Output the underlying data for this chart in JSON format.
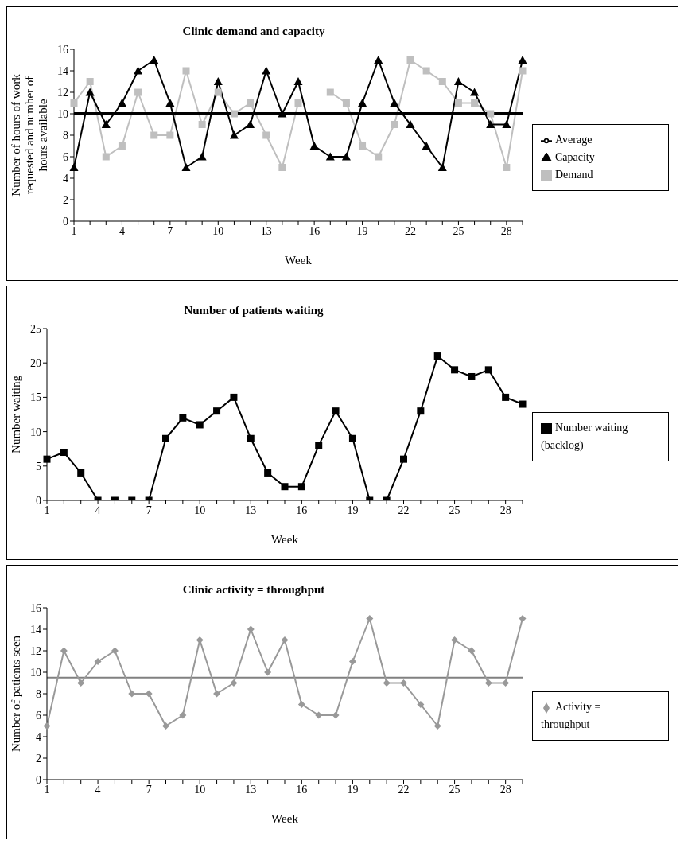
{
  "chart_data": [
    {
      "type": "line",
      "title": "Clinic demand and capacity",
      "xlabel": "Week",
      "ylabel": "Number of hours of work requested and number of hours available",
      "categories": [
        "1",
        null,
        null,
        "4",
        null,
        null,
        "7",
        null,
        null,
        "10",
        null,
        null,
        "13",
        null,
        null,
        "16",
        null,
        null,
        "19",
        null,
        null,
        "22",
        null,
        null,
        "25",
        null,
        null,
        "28",
        null
      ],
      "series": [
        {
          "name": "Demand",
          "color": "#bfbfbf",
          "marker": "square",
          "values": [
            11,
            13,
            6,
            7,
            12,
            8,
            8,
            14,
            9,
            12,
            10,
            11,
            8,
            5,
            11,
            null,
            12,
            11,
            7,
            6,
            9,
            15,
            14,
            13,
            11,
            11,
            10,
            5,
            14
          ]
        },
        {
          "name": "Capacity",
          "color": "#000000",
          "marker": "triangle",
          "values": [
            5,
            12,
            9,
            11,
            14,
            15,
            11,
            5,
            6,
            13,
            8,
            9,
            14,
            10,
            13,
            7,
            6,
            6,
            11,
            15,
            11,
            9,
            7,
            5,
            13,
            12,
            9,
            9,
            15
          ]
        },
        {
          "name": "Average",
          "color": "#000000",
          "marker": "none",
          "values": [
            10,
            10,
            10,
            10,
            10,
            10,
            10,
            10,
            10,
            10,
            10,
            10,
            10,
            10,
            10,
            10,
            10,
            10,
            10,
            10,
            10,
            10,
            10,
            10,
            10,
            10,
            10,
            10,
            10
          ]
        }
      ],
      "ylim": [
        0,
        16
      ],
      "yticks": [
        0,
        2,
        4,
        6,
        8,
        10,
        12,
        14,
        16
      ],
      "grid": false,
      "legend": "right"
    },
    {
      "type": "line",
      "title": "Number of patients waiting",
      "xlabel": "Week",
      "ylabel": "Number waiting",
      "categories": [
        "1",
        null,
        null,
        "4",
        null,
        null,
        "7",
        null,
        null,
        "10",
        null,
        null,
        "13",
        null,
        null,
        "16",
        null,
        null,
        "19",
        null,
        null,
        "22",
        null,
        null,
        "25",
        null,
        null,
        "28",
        null
      ],
      "series": [
        {
          "name": "Number waiting (backlog)",
          "color": "#000000",
          "marker": "square",
          "values": [
            6,
            7,
            4,
            0,
            0,
            0,
            0,
            9,
            12,
            11,
            13,
            15,
            9,
            4,
            2,
            2,
            8,
            13,
            9,
            0,
            0,
            6,
            13,
            21,
            19,
            18,
            19,
            15,
            14
          ]
        }
      ],
      "ylim": [
        0,
        25
      ],
      "yticks": [
        0,
        5,
        10,
        15,
        20,
        25
      ],
      "grid": false,
      "legend": "right"
    },
    {
      "type": "line",
      "title": "Clinic activity = throughput",
      "xlabel": "Week",
      "ylabel": "Number of patients seen",
      "categories": [
        "1",
        null,
        null,
        "4",
        null,
        null,
        "7",
        null,
        null,
        "10",
        null,
        null,
        "13",
        null,
        null,
        "16",
        null,
        null,
        "19",
        null,
        null,
        "22",
        null,
        null,
        "25",
        null,
        null,
        "28",
        null
      ],
      "series": [
        {
          "name": "Activity = throughput",
          "color": "#999999",
          "marker": "diamond",
          "values": [
            5,
            12,
            9,
            11,
            12,
            8,
            8,
            5,
            6,
            13,
            8,
            9,
            14,
            10,
            13,
            7,
            6,
            6,
            11,
            15,
            9,
            9,
            7,
            5,
            13,
            12,
            9,
            9,
            15
          ]
        }
      ],
      "ref_lines": [
        {
          "axis": "y",
          "value": 9.5,
          "color": "#808080"
        }
      ],
      "ylim": [
        0,
        16
      ],
      "yticks": [
        0,
        2,
        4,
        6,
        8,
        10,
        12,
        14,
        16
      ],
      "grid": false,
      "legend": "right"
    }
  ]
}
